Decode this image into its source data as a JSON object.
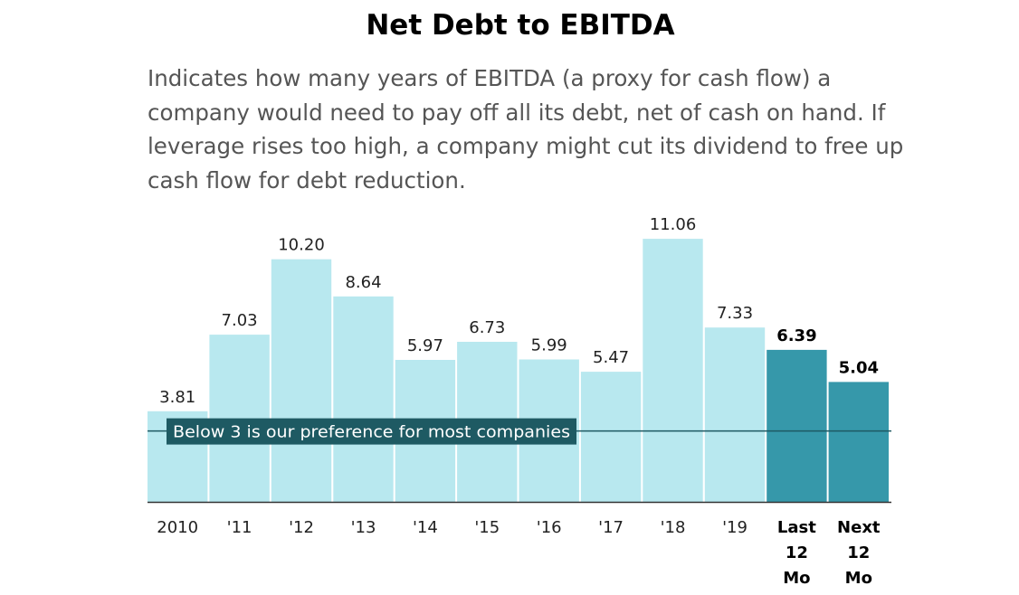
{
  "chart_data": {
    "type": "bar",
    "title": "Net Debt to EBITDA",
    "subtitle": "Indicates how many years of EBITDA (a proxy for cash flow) a company would need to pay off all its debt, net of cash on hand. If leverage rises too high, a company might cut its dividend to free up cash flow for debt reduction.",
    "categories": [
      [
        "2010"
      ],
      [
        "'11"
      ],
      [
        "'12"
      ],
      [
        "'13"
      ],
      [
        "'14"
      ],
      [
        "'15"
      ],
      [
        "'16"
      ],
      [
        "'17"
      ],
      [
        "'18"
      ],
      [
        "'19"
      ],
      [
        "Last",
        "12",
        "Mo"
      ],
      [
        "Next",
        "12",
        "Mo"
      ]
    ],
    "values": [
      3.81,
      7.03,
      10.2,
      8.64,
      5.97,
      6.73,
      5.99,
      5.47,
      11.06,
      7.33,
      6.39,
      5.04
    ],
    "value_labels": [
      "3.81",
      "7.03",
      "10.20",
      "8.64",
      "5.97",
      "6.73",
      "5.99",
      "5.47",
      "11.06",
      "7.33",
      "6.39",
      "5.04"
    ],
    "highlighted": [
      false,
      false,
      false,
      false,
      false,
      false,
      false,
      false,
      false,
      false,
      true,
      true
    ],
    "colors": {
      "normal": "#b8e8ef",
      "highlight": "#3698aa",
      "axis": "#333333",
      "reference": "#1e5a63"
    },
    "reference_line": {
      "value": 3,
      "label": "Below 3 is our preference for most companies"
    }
  }
}
